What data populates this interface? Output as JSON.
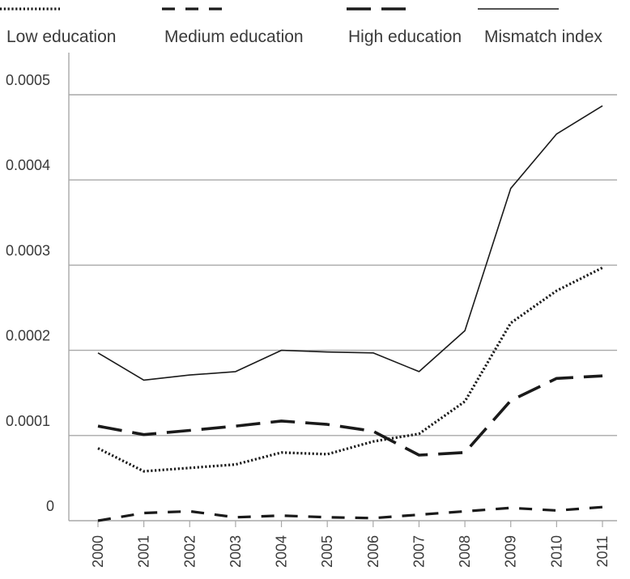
{
  "chart_data": {
    "type": "line",
    "categories": [
      "2000",
      "2001",
      "2002",
      "2003",
      "2004",
      "2005",
      "2006",
      "2007",
      "2008",
      "2009",
      "2010",
      "2011"
    ],
    "series": [
      {
        "name": "Low education",
        "style": "dotted",
        "values": [
          8.5e-05,
          5.8e-05,
          6.2e-05,
          6.6e-05,
          8e-05,
          7.8e-05,
          9.3e-05,
          0.000102,
          0.00014,
          0.000232,
          0.00027,
          0.000297
        ]
      },
      {
        "name": "Medium education",
        "style": "dashed",
        "values": [
          0.0,
          9e-06,
          1.1e-05,
          4e-06,
          6e-06,
          4e-06,
          3e-06,
          7e-06,
          1.1e-05,
          1.5e-05,
          1.2e-05,
          1.6e-05
        ]
      },
      {
        "name": "High education",
        "style": "longdash",
        "values": [
          0.000111,
          0.000101,
          0.000106,
          0.000111,
          0.000117,
          0.000113,
          0.000105,
          7.7e-05,
          8e-05,
          0.000141,
          0.000167,
          0.00017
        ]
      },
      {
        "name": "Mismatch index",
        "style": "solid",
        "values": [
          0.000197,
          0.000165,
          0.000171,
          0.000175,
          0.0002,
          0.000198,
          0.000197,
          0.000175,
          0.000223,
          0.00039,
          0.000454,
          0.000487
        ]
      }
    ],
    "y_ticks": [
      "0",
      "0.0001",
      "0.0002",
      "0.0003",
      "0.0004",
      "0.0005"
    ],
    "ylim": [
      0,
      0.0005
    ],
    "grid": true,
    "legend_position": "top",
    "colors": {
      "line": "#1a1a1a",
      "grid": "#a8a8a8",
      "text": "#3a3a3a"
    }
  }
}
